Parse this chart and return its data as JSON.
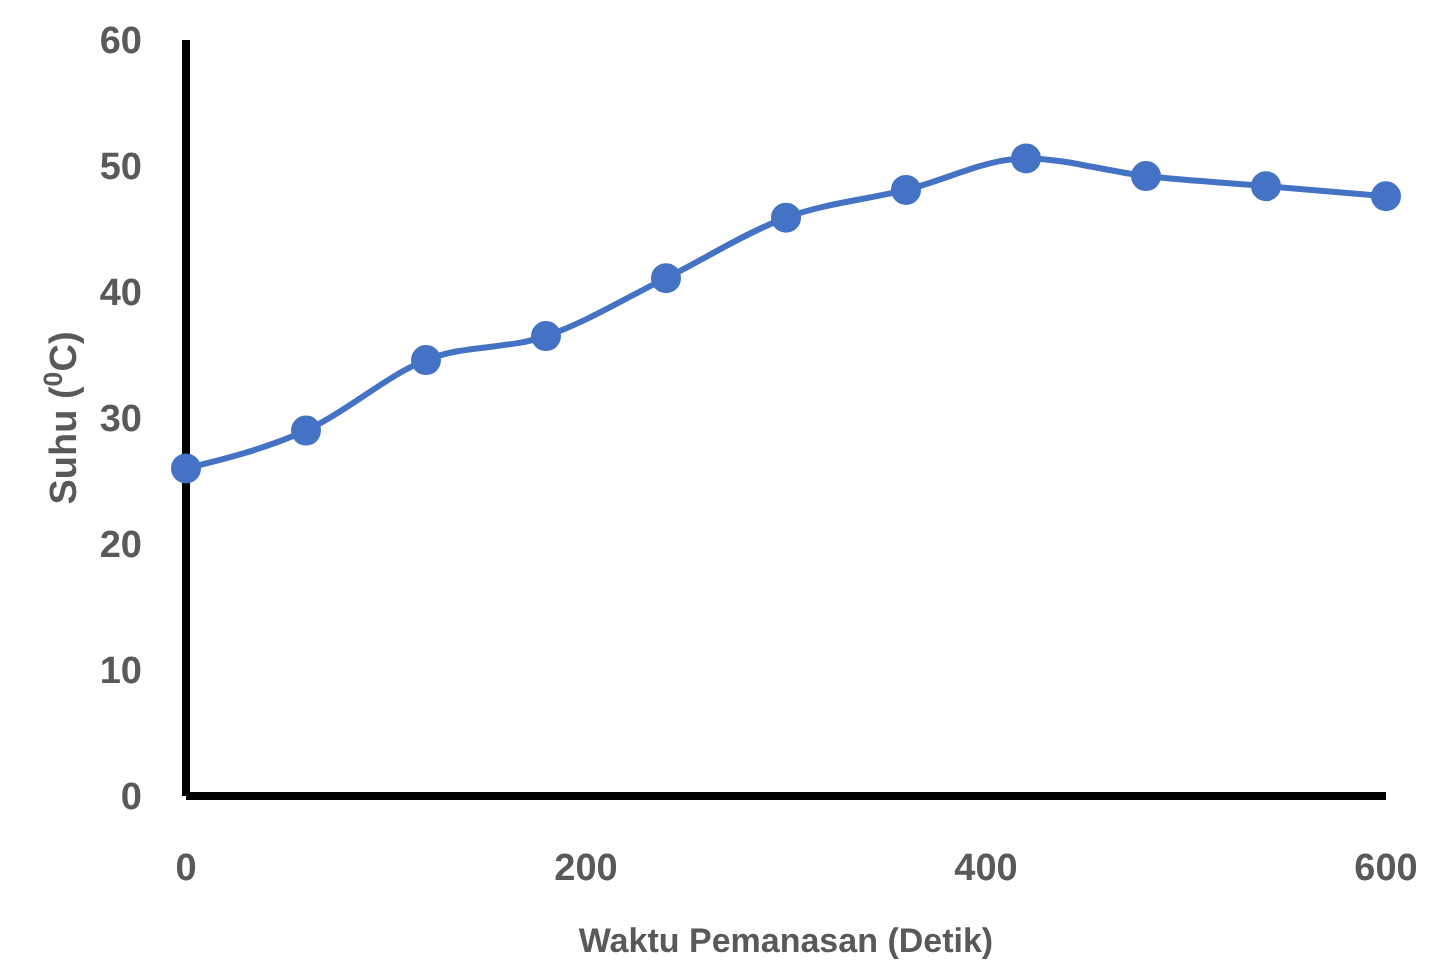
{
  "chart_data": {
    "type": "line",
    "xlabel": "Waktu Pemanasan (Detik)",
    "ylabel": "Suhu ($^{0}$C)",
    "x": [
      0,
      60,
      120,
      180,
      240,
      300,
      360,
      420,
      480,
      540,
      600
    ],
    "series": [
      {
        "color": "#4472c4",
        "values": [
          26.0,
          29.0,
          34.6,
          36.5,
          41.1,
          45.9,
          48.1,
          50.6,
          49.2,
          48.4,
          47.6
        ]
      }
    ],
    "xlim": [
      0,
      600
    ],
    "xticks": [
      0,
      200,
      400,
      600
    ],
    "ylim": [
      0,
      60
    ],
    "yticks": [
      0,
      10,
      20,
      30,
      40,
      50,
      60
    ],
    "grid": false,
    "marker": "circle",
    "line_style": "solid"
  }
}
